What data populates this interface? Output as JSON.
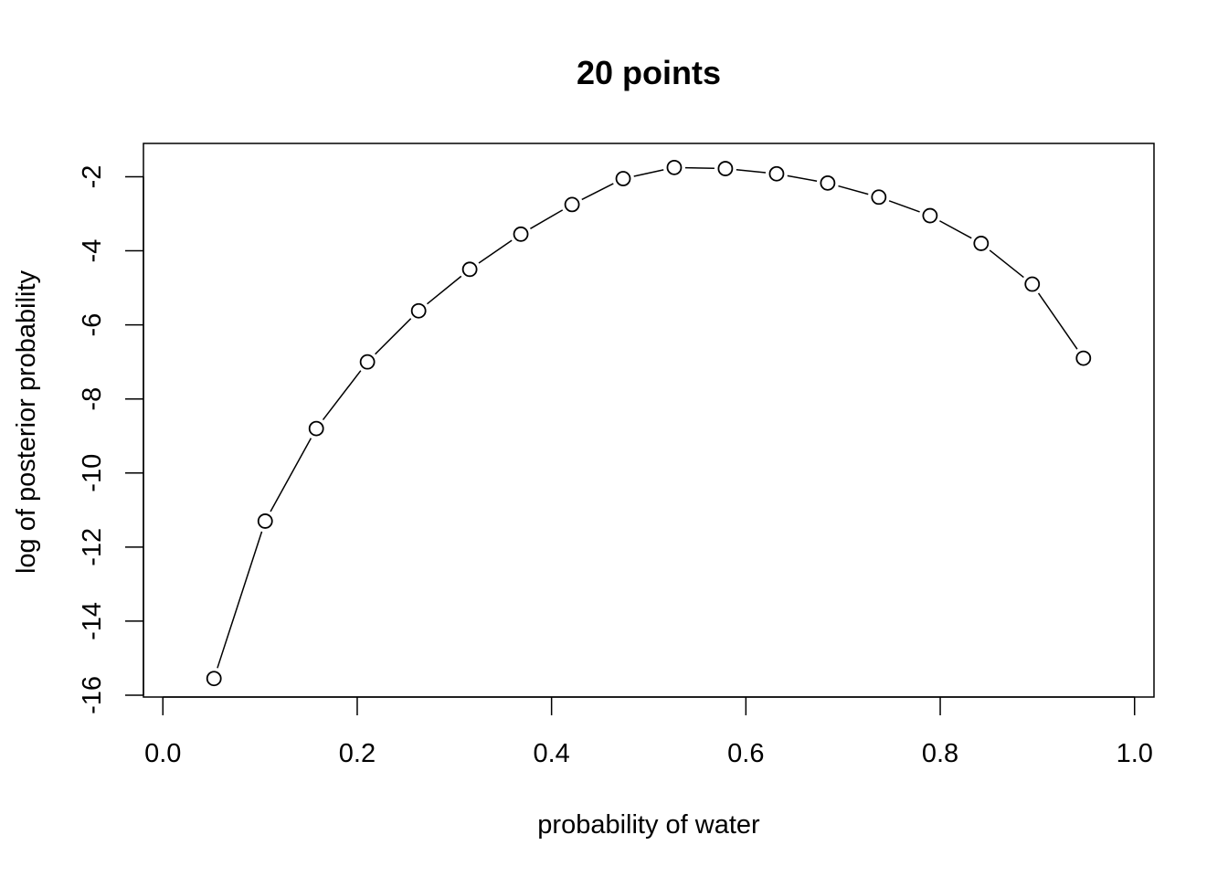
{
  "chart_data": {
    "type": "line",
    "title": "20 points",
    "xlabel": "probability of water",
    "ylabel": "log of posterior probability",
    "xlim": [
      -0.02,
      1.02
    ],
    "ylim": [
      -16.05,
      -1.1
    ],
    "x_ticks": [
      0.0,
      0.2,
      0.4,
      0.6,
      0.8,
      1.0
    ],
    "x_tick_labels": [
      "0.0",
      "0.2",
      "0.4",
      "0.6",
      "0.8",
      "1.0"
    ],
    "y_ticks": [
      -16,
      -14,
      -12,
      -10,
      -8,
      -6,
      -4,
      -2
    ],
    "y_tick_labels": [
      "-16",
      "-14",
      "-12",
      "-10",
      "-8",
      "-6",
      "-4",
      "-2"
    ],
    "grid": false,
    "legend": "none",
    "marker": "open-circle",
    "line_color": "#000000",
    "series": [
      {
        "x": [
          0.0526,
          0.1053,
          0.1579,
          0.2105,
          0.2632,
          0.3158,
          0.3684,
          0.4211,
          0.4737,
          0.5263,
          0.5789,
          0.6316,
          0.6842,
          0.7368,
          0.7895,
          0.8421,
          0.8947,
          0.9474
        ],
        "y": [
          -15.55,
          -11.3,
          -8.8,
          -7.0,
          -5.62,
          -4.5,
          -3.55,
          -2.75,
          -2.05,
          -1.75,
          -1.78,
          -1.92,
          -2.17,
          -2.55,
          -3.05,
          -3.8,
          -4.9,
          -6.9
        ]
      }
    ]
  }
}
